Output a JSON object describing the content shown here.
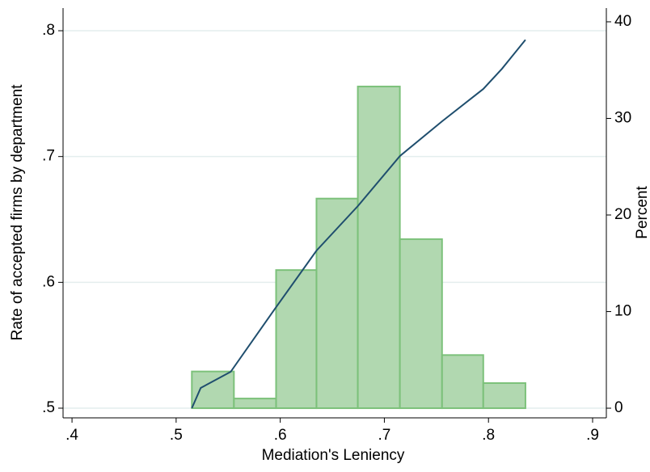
{
  "chart_data": {
    "type": "histogram",
    "xlabel": "Mediation's Leniency",
    "ylabel": "Rate of accepted firms by department",
    "y2label": "Percent",
    "xlim": [
      0.3914,
      0.9132
    ],
    "xticks": [
      {
        "value": 0.4,
        "label": ".4"
      },
      {
        "value": 0.5,
        "label": ".5"
      },
      {
        "value": 0.6,
        "label": ".6"
      },
      {
        "value": 0.7,
        "label": ".7"
      },
      {
        "value": 0.8,
        "label": ".8"
      },
      {
        "value": 0.9,
        "label": ".9"
      }
    ],
    "ylim": [
      0.4923,
      0.818
    ],
    "yticks": [
      {
        "value": 0.5,
        "label": ".5"
      },
      {
        "value": 0.6,
        "label": ".6"
      },
      {
        "value": 0.7,
        "label": ".7"
      },
      {
        "value": 0.8,
        "label": ".8"
      }
    ],
    "y2lim": [
      -1.0,
      41.42
    ],
    "y2ticks": [
      0,
      10,
      20,
      30,
      40
    ],
    "grid": true,
    "bins": [
      0.5151,
      0.5555,
      0.596,
      0.6348,
      0.6745,
      0.7149,
      0.7554,
      0.795,
      0.8355
    ],
    "counts": [
      3.8,
      1.0,
      14.3,
      21.7,
      33.3,
      17.5,
      5.5,
      2.6
    ],
    "bar_color": "#b1d8b0",
    "bar_edge": "#7cc17a",
    "line": {
      "color": "#1f4e6e",
      "x": [
        0.5151,
        0.5236,
        0.5524,
        0.596,
        0.6348,
        0.6745,
        0.7149,
        0.7554,
        0.795,
        0.8129,
        0.8355
      ],
      "values": [
        0.5,
        0.5161,
        0.5289,
        0.5803,
        0.6252,
        0.6606,
        0.7004,
        0.728,
        0.7537,
        0.7697,
        0.7928
      ]
    }
  }
}
